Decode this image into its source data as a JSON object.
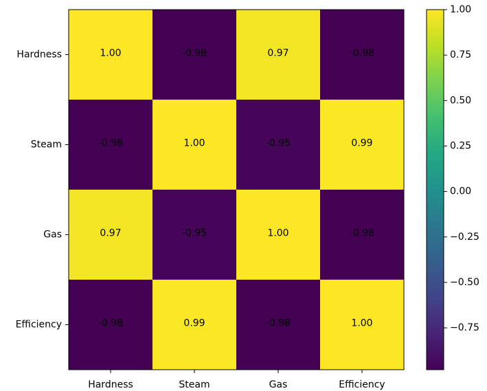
{
  "chart_data": {
    "type": "heatmap",
    "title": "",
    "xlabel": "",
    "ylabel": "",
    "x_categories": [
      "Hardness",
      "Steam",
      "Gas",
      "Efficiency"
    ],
    "y_categories": [
      "Hardness",
      "Steam",
      "Gas",
      "Efficiency"
    ],
    "values": [
      [
        1.0,
        -0.98,
        0.97,
        -0.98
      ],
      [
        -0.98,
        1.0,
        -0.95,
        0.99
      ],
      [
        0.97,
        -0.95,
        1.0,
        -0.98
      ],
      [
        -0.98,
        0.99,
        -0.98,
        1.0
      ]
    ],
    "cell_labels": [
      [
        "1.00",
        "-0.98",
        "0.97",
        "-0.98"
      ],
      [
        "-0.98",
        "1.00",
        "-0.95",
        "0.99"
      ],
      [
        "0.97",
        "-0.95",
        "1.00",
        "-0.98"
      ],
      [
        "-0.98",
        "0.99",
        "-0.98",
        "1.00"
      ]
    ],
    "colormap": "viridis",
    "value_range": [
      -0.98,
      1.0
    ],
    "grid": false,
    "colorbar": {
      "position": "right",
      "ticks": [
        1.0,
        0.75,
        0.5,
        0.25,
        0.0,
        -0.25,
        -0.5,
        -0.75
      ],
      "tick_labels": [
        "1.00",
        "0.75",
        "0.50",
        "0.25",
        "0.00",
        "−0.25",
        "−0.50",
        "−0.75"
      ]
    }
  }
}
